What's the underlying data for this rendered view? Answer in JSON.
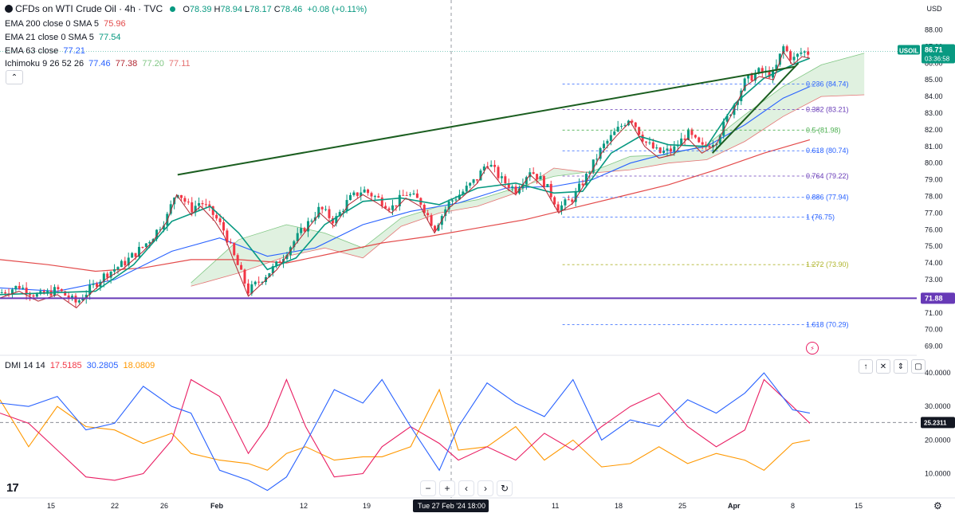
{
  "header": {
    "title": "CFDs on WTI Crude Oil · 4h · TVC",
    "ohlc": {
      "o_label": "O",
      "o": "78.39",
      "h_label": "H",
      "h": "78.94",
      "l_label": "L",
      "l": "78.17",
      "c_label": "C",
      "c": "78.46",
      "change": "+0.08 (+0.11%)"
    }
  },
  "indicators": [
    {
      "label": "EMA 200 close 0 SMA 5",
      "value": "75.96",
      "color": "#e34a4a"
    },
    {
      "label": "EMA 21 close 0 SMA 5",
      "value": "77.54",
      "color": "#089981"
    },
    {
      "label": "EMA 63 close",
      "value": "77.21",
      "color": "#2962ff"
    },
    {
      "label": "Ichimoku 9 26 52 26",
      "values": [
        "77.46",
        "77.38",
        "77.20",
        "77.11"
      ],
      "colors": [
        "#2962ff",
        "#b22833",
        "#81c784",
        "#e57373"
      ]
    }
  ],
  "dmi": {
    "label": "DMI 14 14",
    "values": [
      "17.5185",
      "30.2805",
      "18.0809"
    ],
    "colors": [
      "#f23645",
      "#2962ff",
      "#ff9800"
    ]
  },
  "price_axis": {
    "currency": "USD",
    "ticks": [
      "88.00",
      "87.00",
      "86.00",
      "85.00",
      "84.00",
      "83.00",
      "82.00",
      "81.00",
      "80.00",
      "79.00",
      "78.00",
      "77.00",
      "76.00",
      "75.00",
      "74.00",
      "73.00",
      "72.00",
      "71.00",
      "70.00",
      "69.00"
    ],
    "usoil_label": "USOIL",
    "usoil_price": "86.71",
    "usoil_timer": "03:36:58",
    "support_price": "71.88"
  },
  "dmi_axis": {
    "ticks": [
      "40.0000",
      "30.0000",
      "20.0000",
      "10.0000"
    ],
    "current": "25.2311"
  },
  "time_axis": {
    "ticks": [
      "15",
      "22",
      "26",
      "Feb",
      "12",
      "19",
      "11",
      "18",
      "25",
      "Apr",
      "8",
      "15"
    ],
    "crosshair_label": "Tue 27 Feb '24   18:00"
  },
  "fib_levels": [
    {
      "label": "0.236 (84.74)",
      "price": 84.74,
      "color": "#2962ff"
    },
    {
      "label": "0.382 (83.21)",
      "price": 83.21,
      "color": "#673ab7"
    },
    {
      "label": "0.5 (81.98)",
      "price": 81.98,
      "color": "#4caf50"
    },
    {
      "label": "0.618 (80.74)",
      "price": 80.74,
      "color": "#2962ff"
    },
    {
      "label": "0.764 (79.22)",
      "price": 79.22,
      "color": "#673ab7"
    },
    {
      "label": "0.886 (77.94)",
      "price": 77.94,
      "color": "#2962ff"
    },
    {
      "label": "1 (76.75)",
      "price": 76.75,
      "color": "#2962ff"
    },
    {
      "label": "1.272 (73.90)",
      "price": 73.9,
      "color": "#afb42b"
    },
    {
      "label": "1.618 (70.29)",
      "price": 70.29,
      "color": "#2962ff"
    }
  ],
  "nav": {
    "minus": "−",
    "plus": "+",
    "left": "‹",
    "right": "›",
    "reset": "↻"
  },
  "pane_controls": {
    "up": "↑",
    "close": "✕",
    "collapse": "⇕",
    "maximize": "▢"
  },
  "collapse_icon": "⌃",
  "logo_text": "17",
  "chart_data": {
    "type": "candlestick",
    "price_range": [
      68.5,
      88.6
    ],
    "dmi_range": [
      3,
      45
    ],
    "support_level": 71.88,
    "trendlines": [
      {
        "from": [
          0.186,
          79.3
        ],
        "to": [
          0.833,
          85.8
        ],
        "color": "#1b5e20"
      },
      {
        "from": [
          0.746,
          80.6
        ],
        "to": [
          0.836,
          86.0
        ],
        "color": "#1b5e20"
      }
    ],
    "close_path": [
      [
        0.0,
        72.2
      ],
      [
        0.02,
        72.6
      ],
      [
        0.04,
        72.0
      ],
      [
        0.06,
        72.4
      ],
      [
        0.08,
        71.6
      ],
      [
        0.09,
        72.2
      ],
      [
        0.11,
        73.3
      ],
      [
        0.13,
        74.0
      ],
      [
        0.15,
        75.0
      ],
      [
        0.16,
        75.6
      ],
      [
        0.175,
        76.8
      ],
      [
        0.185,
        78.4
      ],
      [
        0.2,
        77.2
      ],
      [
        0.21,
        77.7
      ],
      [
        0.225,
        76.8
      ],
      [
        0.235,
        75.9
      ],
      [
        0.245,
        74.4
      ],
      [
        0.26,
        72.3
      ],
      [
        0.275,
        73.1
      ],
      [
        0.29,
        73.9
      ],
      [
        0.305,
        75.1
      ],
      [
        0.32,
        76.2
      ],
      [
        0.335,
        77.3
      ],
      [
        0.35,
        76.5
      ],
      [
        0.365,
        77.8
      ],
      [
        0.38,
        78.4
      ],
      [
        0.395,
        77.9
      ],
      [
        0.41,
        77.3
      ],
      [
        0.425,
        78.2
      ],
      [
        0.44,
        77.7
      ],
      [
        0.455,
        76.1
      ],
      [
        0.47,
        77.6
      ],
      [
        0.485,
        78.3
      ],
      [
        0.5,
        79.1
      ],
      [
        0.51,
        80.1
      ],
      [
        0.525,
        79.0
      ],
      [
        0.54,
        78.4
      ],
      [
        0.555,
        79.6
      ],
      [
        0.57,
        78.8
      ],
      [
        0.585,
        77.3
      ],
      [
        0.6,
        77.9
      ],
      [
        0.615,
        79.3
      ],
      [
        0.63,
        80.9
      ],
      [
        0.645,
        81.9
      ],
      [
        0.66,
        82.8
      ],
      [
        0.675,
        81.3
      ],
      [
        0.69,
        80.6
      ],
      [
        0.705,
        80.8
      ],
      [
        0.72,
        81.8
      ],
      [
        0.735,
        80.9
      ],
      [
        0.75,
        81.4
      ],
      [
        0.765,
        83.1
      ],
      [
        0.78,
        84.9
      ],
      [
        0.795,
        85.5
      ],
      [
        0.81,
        85.3
      ],
      [
        0.82,
        87.0
      ],
      [
        0.83,
        86.2
      ],
      [
        0.84,
        86.7
      ],
      [
        0.848,
        86.6
      ]
    ],
    "ema21": [
      [
        0.0,
        72.1
      ],
      [
        0.05,
        72.2
      ],
      [
        0.1,
        72.3
      ],
      [
        0.14,
        73.9
      ],
      [
        0.18,
        76.5
      ],
      [
        0.22,
        77.4
      ],
      [
        0.25,
        75.8
      ],
      [
        0.28,
        73.6
      ],
      [
        0.31,
        74.3
      ],
      [
        0.34,
        76.3
      ],
      [
        0.38,
        77.7
      ],
      [
        0.42,
        77.9
      ],
      [
        0.46,
        77.5
      ],
      [
        0.5,
        78.5
      ],
      [
        0.54,
        78.8
      ],
      [
        0.58,
        78.2
      ],
      [
        0.61,
        78.3
      ],
      [
        0.64,
        80.6
      ],
      [
        0.67,
        81.6
      ],
      [
        0.7,
        81.1
      ],
      [
        0.74,
        81.0
      ],
      [
        0.77,
        83.6
      ],
      [
        0.8,
        85.1
      ],
      [
        0.83,
        85.9
      ],
      [
        0.848,
        86.3
      ]
    ],
    "ema63": [
      [
        0.0,
        72.5
      ],
      [
        0.06,
        72.3
      ],
      [
        0.12,
        73.0
      ],
      [
        0.18,
        74.7
      ],
      [
        0.23,
        75.5
      ],
      [
        0.28,
        74.4
      ],
      [
        0.33,
        74.9
      ],
      [
        0.38,
        76.3
      ],
      [
        0.43,
        77.1
      ],
      [
        0.48,
        77.6
      ],
      [
        0.53,
        78.5
      ],
      [
        0.58,
        78.6
      ],
      [
        0.62,
        79.0
      ],
      [
        0.66,
        80.0
      ],
      [
        0.7,
        80.6
      ],
      [
        0.74,
        81.0
      ],
      [
        0.78,
        82.3
      ],
      [
        0.82,
        83.9
      ],
      [
        0.848,
        84.6
      ]
    ],
    "ema200": [
      [
        0.0,
        74.2
      ],
      [
        0.05,
        73.9
      ],
      [
        0.1,
        73.5
      ],
      [
        0.15,
        73.7
      ],
      [
        0.2,
        74.2
      ],
      [
        0.25,
        74.2
      ],
      [
        0.3,
        74.0
      ],
      [
        0.35,
        74.6
      ],
      [
        0.4,
        75.2
      ],
      [
        0.45,
        75.6
      ],
      [
        0.5,
        76.1
      ],
      [
        0.55,
        76.6
      ],
      [
        0.6,
        77.3
      ],
      [
        0.65,
        78.0
      ],
      [
        0.7,
        78.7
      ],
      [
        0.75,
        79.6
      ],
      [
        0.8,
        80.6
      ],
      [
        0.848,
        81.4
      ]
    ],
    "cloud_a": [
      [
        0.2,
        72.8
      ],
      [
        0.25,
        75.4
      ],
      [
        0.3,
        76.3
      ],
      [
        0.34,
        75.8
      ],
      [
        0.38,
        74.9
      ],
      [
        0.42,
        76.7
      ],
      [
        0.46,
        77.4
      ],
      [
        0.5,
        77.8
      ],
      [
        0.54,
        78.5
      ],
      [
        0.58,
        79.2
      ],
      [
        0.62,
        79.5
      ],
      [
        0.66,
        80.4
      ],
      [
        0.7,
        80.5
      ],
      [
        0.74,
        81.1
      ],
      [
        0.78,
        82.9
      ],
      [
        0.82,
        84.6
      ],
      [
        0.86,
        85.9
      ],
      [
        0.905,
        86.6
      ]
    ],
    "cloud_b": [
      [
        0.2,
        72.6
      ],
      [
        0.25,
        73.4
      ],
      [
        0.3,
        74.4
      ],
      [
        0.34,
        74.9
      ],
      [
        0.38,
        74.3
      ],
      [
        0.42,
        76.2
      ],
      [
        0.46,
        77.0
      ],
      [
        0.5,
        77.4
      ],
      [
        0.54,
        78.2
      ],
      [
        0.58,
        79.7
      ],
      [
        0.62,
        79.4
      ],
      [
        0.66,
        79.6
      ],
      [
        0.7,
        80.0
      ],
      [
        0.74,
        80.2
      ],
      [
        0.78,
        81.3
      ],
      [
        0.82,
        82.8
      ],
      [
        0.86,
        84.0
      ],
      [
        0.905,
        84.1
      ]
    ],
    "dmi_plus": [
      [
        0.0,
        28
      ],
      [
        0.03,
        25
      ],
      [
        0.06,
        17
      ],
      [
        0.09,
        9
      ],
      [
        0.12,
        8
      ],
      [
        0.15,
        10
      ],
      [
        0.18,
        20
      ],
      [
        0.2,
        38
      ],
      [
        0.23,
        33
      ],
      [
        0.26,
        16
      ],
      [
        0.28,
        24
      ],
      [
        0.3,
        38
      ],
      [
        0.32,
        24
      ],
      [
        0.35,
        9
      ],
      [
        0.38,
        10
      ],
      [
        0.4,
        18
      ],
      [
        0.43,
        24
      ],
      [
        0.46,
        19
      ],
      [
        0.48,
        14
      ],
      [
        0.51,
        18
      ],
      [
        0.54,
        14
      ],
      [
        0.57,
        22
      ],
      [
        0.6,
        17
      ],
      [
        0.63,
        24
      ],
      [
        0.66,
        30
      ],
      [
        0.69,
        34
      ],
      [
        0.72,
        24
      ],
      [
        0.75,
        18
      ],
      [
        0.78,
        23
      ],
      [
        0.8,
        38
      ],
      [
        0.83,
        30
      ],
      [
        0.848,
        25
      ]
    ],
    "dmi_minus": [
      [
        0.0,
        32
      ],
      [
        0.03,
        18
      ],
      [
        0.06,
        30
      ],
      [
        0.09,
        24
      ],
      [
        0.12,
        23
      ],
      [
        0.15,
        19
      ],
      [
        0.18,
        22
      ],
      [
        0.2,
        16
      ],
      [
        0.23,
        14
      ],
      [
        0.26,
        13
      ],
      [
        0.28,
        11
      ],
      [
        0.3,
        16
      ],
      [
        0.32,
        18
      ],
      [
        0.35,
        14
      ],
      [
        0.38,
        15
      ],
      [
        0.4,
        15
      ],
      [
        0.43,
        18
      ],
      [
        0.46,
        35
      ],
      [
        0.48,
        17
      ],
      [
        0.51,
        18
      ],
      [
        0.54,
        24
      ],
      [
        0.57,
        14
      ],
      [
        0.6,
        20
      ],
      [
        0.63,
        12
      ],
      [
        0.66,
        13
      ],
      [
        0.69,
        18
      ],
      [
        0.72,
        13
      ],
      [
        0.75,
        16
      ],
      [
        0.78,
        14
      ],
      [
        0.8,
        11
      ],
      [
        0.83,
        19
      ],
      [
        0.848,
        20
      ]
    ],
    "dmi_blue": [
      [
        0.0,
        31
      ],
      [
        0.03,
        30
      ],
      [
        0.06,
        33
      ],
      [
        0.09,
        23
      ],
      [
        0.12,
        25
      ],
      [
        0.15,
        36
      ],
      [
        0.18,
        30
      ],
      [
        0.2,
        28
      ],
      [
        0.23,
        11
      ],
      [
        0.26,
        8
      ],
      [
        0.28,
        5
      ],
      [
        0.3,
        9
      ],
      [
        0.32,
        19
      ],
      [
        0.35,
        35
      ],
      [
        0.38,
        31
      ],
      [
        0.4,
        38
      ],
      [
        0.43,
        24
      ],
      [
        0.46,
        11
      ],
      [
        0.48,
        24
      ],
      [
        0.51,
        37
      ],
      [
        0.54,
        31
      ],
      [
        0.57,
        27
      ],
      [
        0.6,
        38
      ],
      [
        0.63,
        20
      ],
      [
        0.66,
        26
      ],
      [
        0.69,
        24
      ],
      [
        0.72,
        32
      ],
      [
        0.75,
        28
      ],
      [
        0.78,
        34
      ],
      [
        0.8,
        40
      ],
      [
        0.83,
        29
      ],
      [
        0.848,
        28
      ]
    ]
  }
}
